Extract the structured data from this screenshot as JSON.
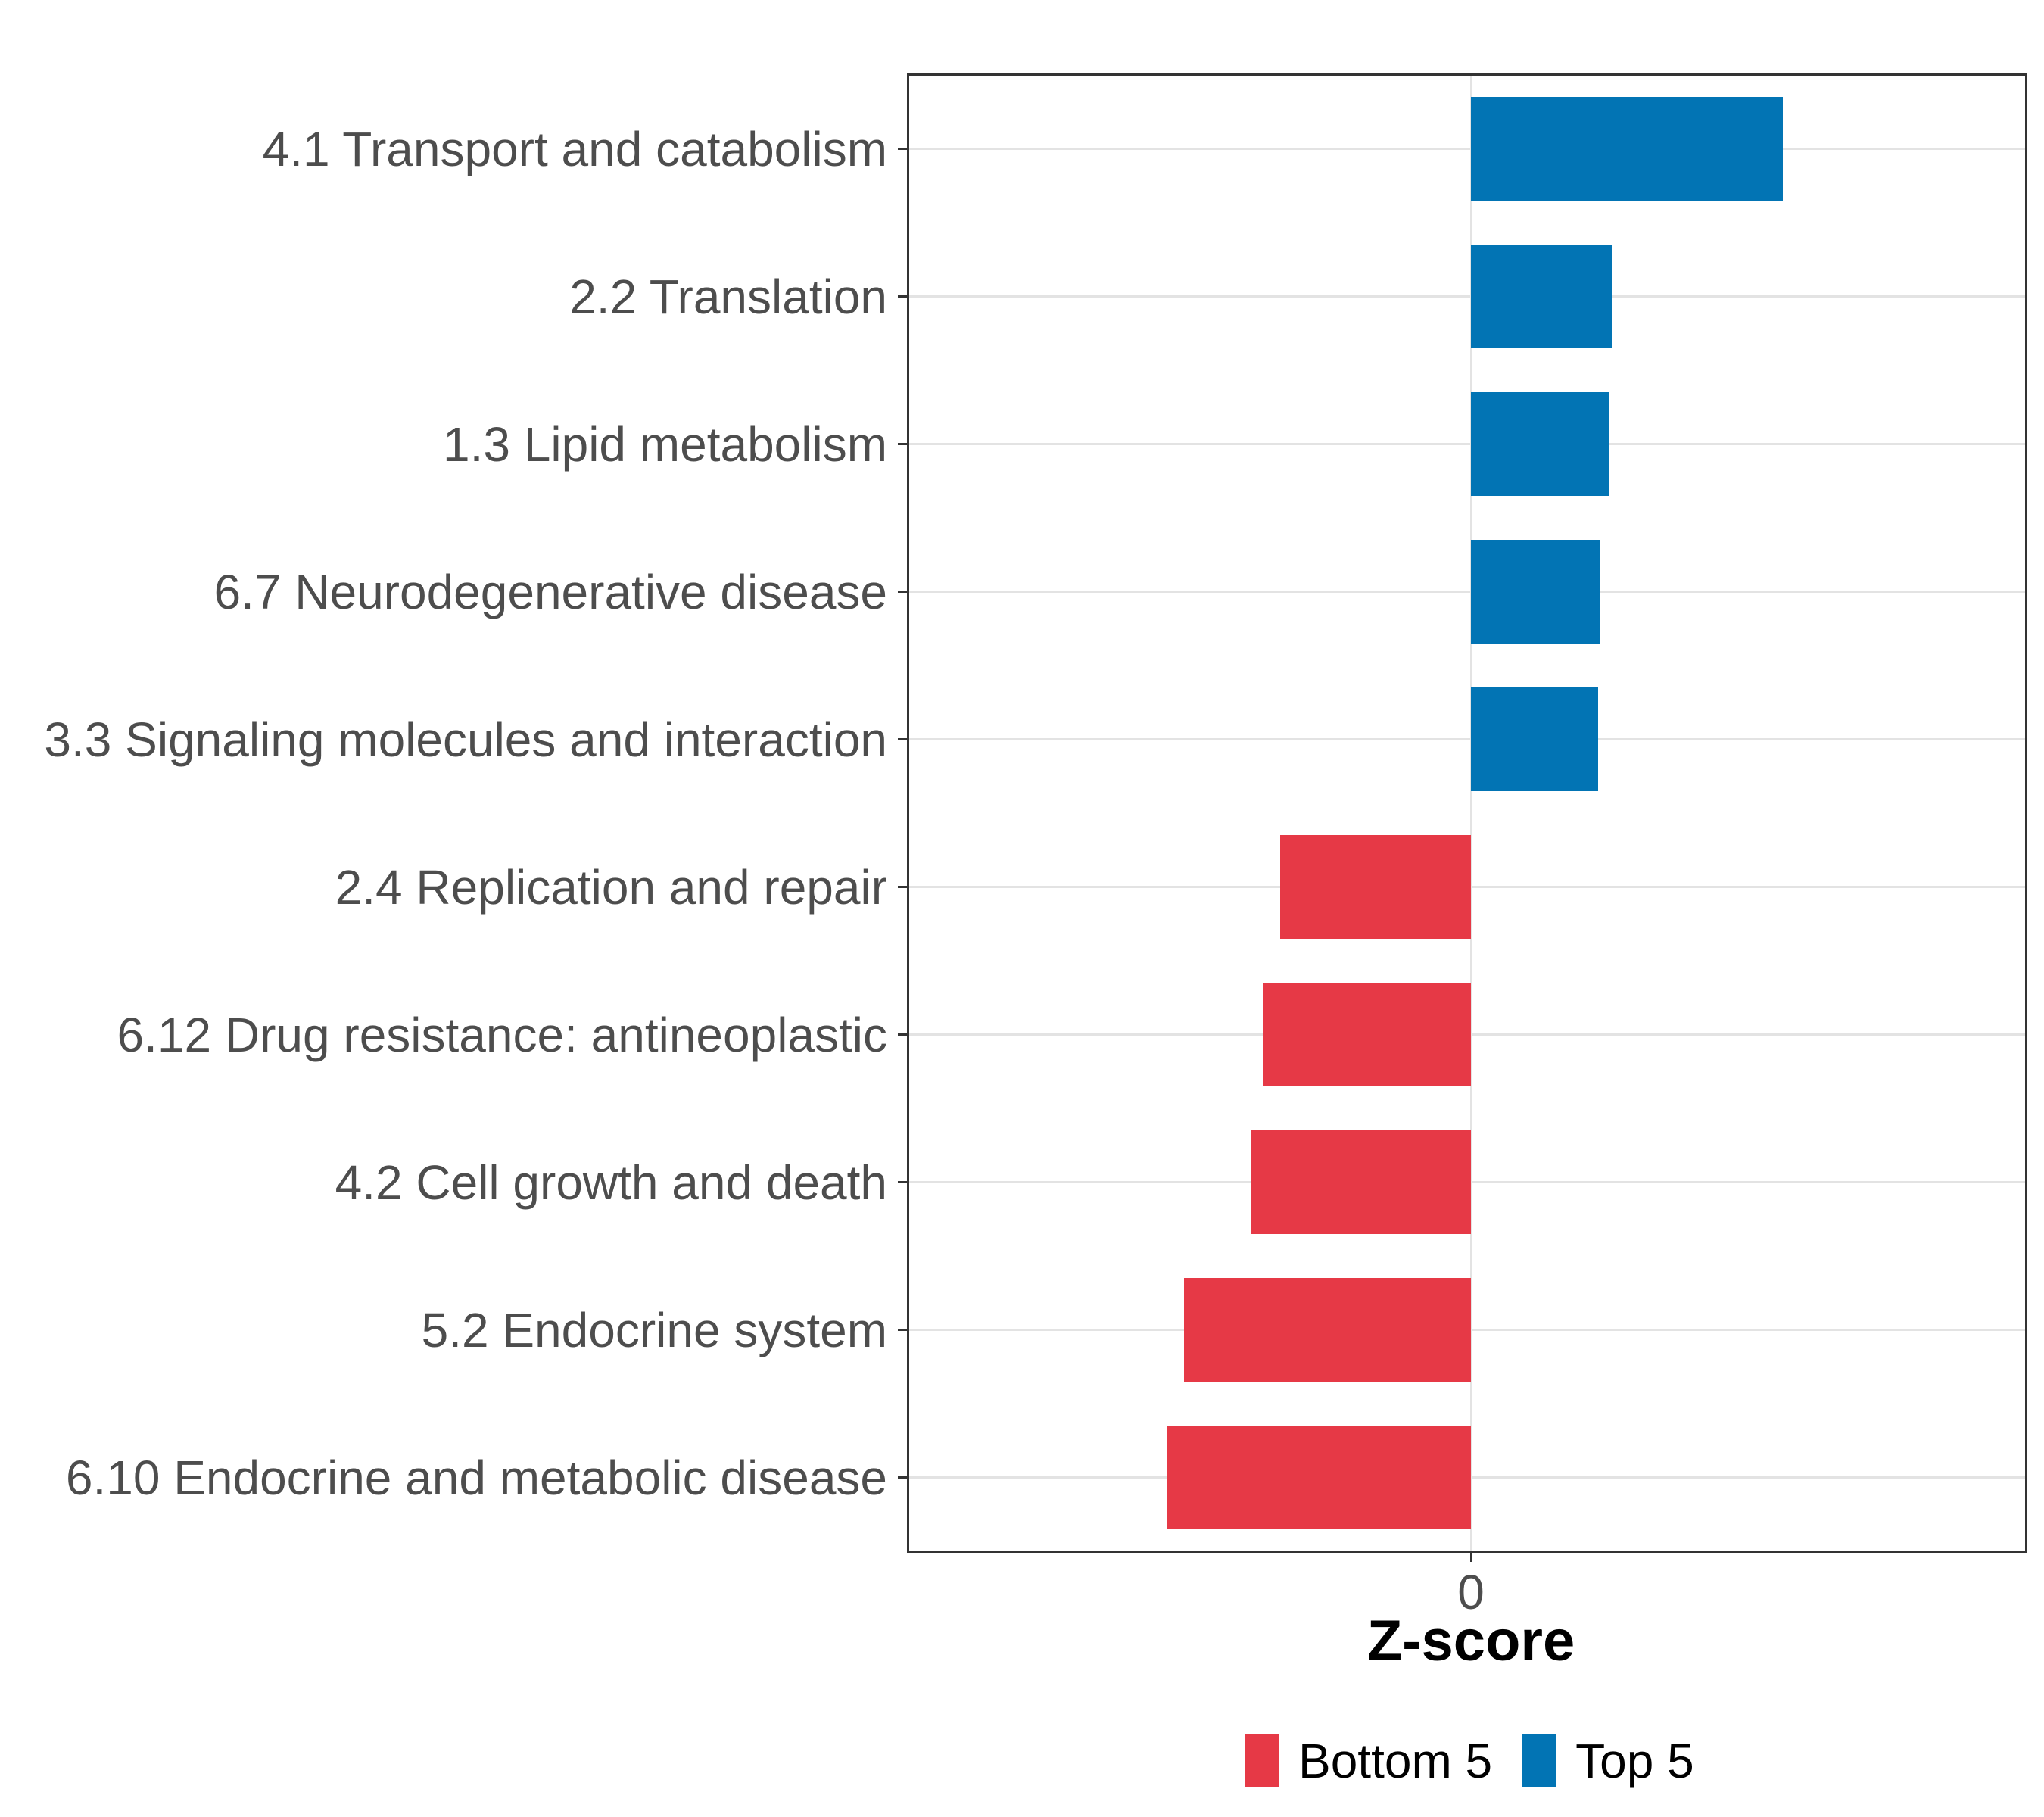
{
  "chart_data": {
    "type": "bar",
    "orientation": "horizontal",
    "title": "",
    "xlabel": "Z-score",
    "ylabel": "",
    "categories": [
      "4.1 Transport and catabolism",
      "2.2 Translation",
      "1.3 Lipid metabolism",
      "6.7 Neurodegenerative disease",
      "3.3 Signaling molecules and interaction",
      "2.4 Replication and repair",
      "6.12 Drug resistance: antineoplastic",
      "4.2 Cell growth and death",
      "5.2 Endocrine system",
      "6.10 Endocrine and metabolic disease"
    ],
    "values": [
      1.62,
      0.73,
      0.72,
      0.67,
      0.66,
      -0.99,
      -1.08,
      -1.14,
      -1.49,
      -1.58
    ],
    "value_note": "z-scores estimated from bar lengths; only the 0 tick is labeled on the x-axis",
    "xlim": [
      -2.92,
      2.88
    ],
    "x_ticks": [
      {
        "value": 0,
        "label": "0"
      }
    ],
    "grid": "horizontal major gridlines per category plus vertical gridline at 0",
    "bar_width_fraction": 0.7,
    "legend": {
      "position": "bottom",
      "entries": [
        {
          "label": "Bottom 5",
          "color": "#E63946"
        },
        {
          "label": "Top 5",
          "color": "#0274B4"
        }
      ]
    },
    "series_coloring": "negative bars filled with Bottom 5 red, positive bars filled with Top 5 blue",
    "colors": {
      "bottom5": "#E63946",
      "top5": "#0274B4",
      "grid": "#E3E3E3",
      "panel_border": "#333333",
      "tick": "#333333",
      "axis_text": "#4D4D4D",
      "axis_title": "#000000"
    }
  }
}
